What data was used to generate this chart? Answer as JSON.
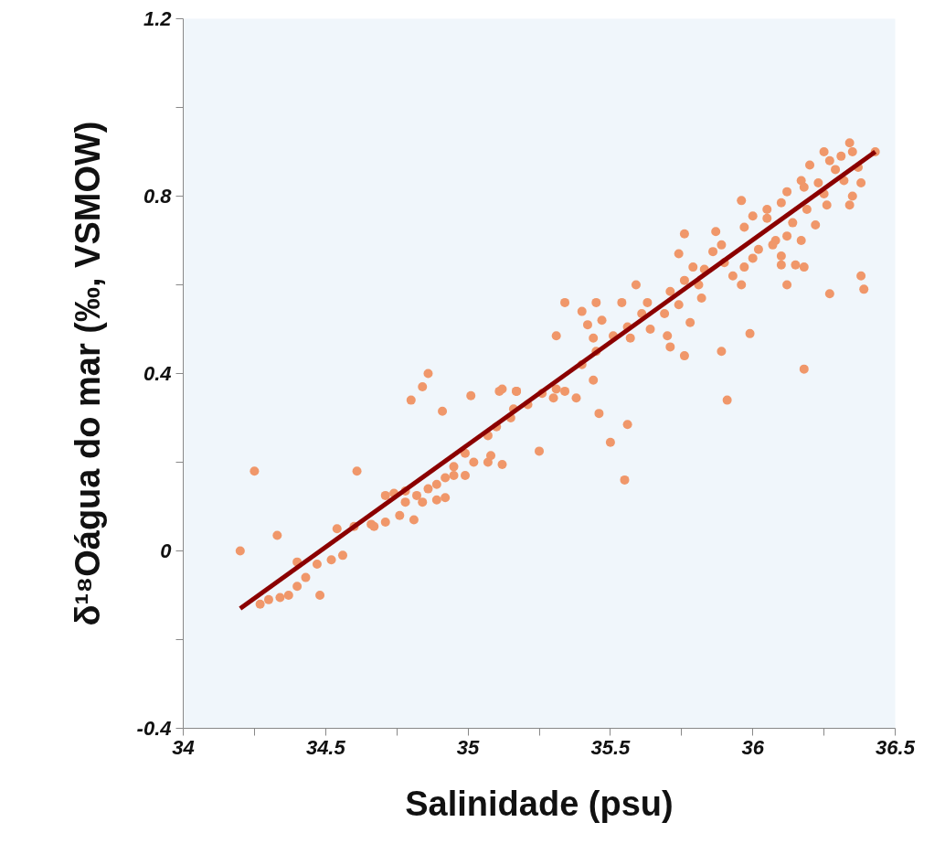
{
  "chart_data": {
    "type": "scatter",
    "xlabel": "Salinidade (psu)",
    "ylabel": "δ¹⁸Oágua do mar (‰, VSMOW)",
    "xlim": [
      34,
      36.5
    ],
    "ylim": [
      -0.4,
      1.2
    ],
    "xticks": [
      34,
      {
        "value": 34.25,
        "label": null
      },
      34.5,
      {
        "value": 34.75,
        "label": null
      },
      35,
      {
        "value": 35.25,
        "label": null
      },
      35.5,
      {
        "value": 35.75,
        "label": null
      },
      36,
      {
        "value": 36.25,
        "label": null
      },
      36.5
    ],
    "yticks": [
      -0.4,
      {
        "value": -0.2,
        "label": null
      },
      0,
      {
        "value": 0.2,
        "label": null
      },
      0.4,
      {
        "value": 0.6,
        "label": null
      },
      0.8,
      {
        "value": 1.0,
        "label": null
      },
      1.2
    ],
    "grid": false,
    "series": [
      {
        "marker": "circle",
        "color": "#f0976a",
        "x": [
          34.2,
          34.25,
          34.33,
          34.27,
          34.3,
          34.34,
          34.37,
          34.4,
          34.43,
          34.47,
          34.48,
          34.4,
          34.52,
          34.56,
          34.54,
          34.6,
          34.66,
          34.61,
          34.67,
          34.71,
          34.76,
          34.81,
          34.78,
          34.82,
          34.86,
          34.89,
          34.92,
          34.95,
          34.99,
          34.71,
          34.74,
          34.78,
          34.84,
          34.89,
          34.92,
          34.8,
          34.84,
          34.86,
          34.91,
          34.95,
          34.99,
          35.01,
          35.07,
          35.12,
          35.07,
          35.1,
          35.15,
          35.16,
          35.21,
          35.26,
          35.31,
          35.12,
          35.25,
          35.55,
          35.56,
          35.5,
          35.46,
          35.91,
          36.18,
          36.27,
          36.38,
          36.39,
          35.99,
          35.89,
          35.31,
          35.34,
          35.4,
          35.45,
          35.54,
          35.59,
          35.44,
          35.42,
          35.47,
          35.44,
          35.38,
          35.34,
          35.3,
          35.17,
          35.4,
          35.45,
          35.51,
          35.56,
          35.57,
          35.61,
          35.64,
          35.63,
          35.69,
          35.7,
          35.71,
          35.76,
          35.71,
          35.74,
          35.78,
          35.76,
          35.79,
          35.82,
          35.81,
          35.83,
          35.74,
          35.76,
          35.86,
          35.87,
          35.89,
          35.9,
          35.93,
          35.96,
          35.97,
          36.0,
          36.02,
          35.96,
          36.0,
          35.97,
          36.05,
          36.05,
          36.08,
          36.07,
          36.1,
          36.1,
          36.12,
          36.15,
          36.18,
          36.17,
          36.12,
          36.14,
          36.1,
          36.12,
          36.17,
          36.19,
          36.22,
          36.2,
          36.23,
          36.25,
          36.26,
          36.25,
          36.29,
          36.31,
          36.34,
          36.35,
          36.32,
          36.35,
          36.34,
          36.38,
          36.37,
          36.43,
          36.27,
          36.18,
          35.11,
          35.17,
          35.08,
          35.02
        ],
        "values": [
          0.0,
          0.18,
          0.035,
          -0.12,
          -0.11,
          -0.105,
          -0.1,
          -0.08,
          -0.06,
          -0.03,
          -0.1,
          -0.025,
          -0.02,
          -0.01,
          0.05,
          0.055,
          0.06,
          0.18,
          0.055,
          0.065,
          0.08,
          0.07,
          0.11,
          0.125,
          0.14,
          0.15,
          0.165,
          0.19,
          0.22,
          0.125,
          0.13,
          0.135,
          0.11,
          0.115,
          0.12,
          0.34,
          0.37,
          0.4,
          0.315,
          0.17,
          0.17,
          0.35,
          0.2,
          0.195,
          0.26,
          0.28,
          0.3,
          0.32,
          0.33,
          0.355,
          0.365,
          0.365,
          0.225,
          0.16,
          0.285,
          0.245,
          0.31,
          0.34,
          0.41,
          0.58,
          0.62,
          0.59,
          0.49,
          0.45,
          0.485,
          0.56,
          0.54,
          0.56,
          0.56,
          0.6,
          0.48,
          0.51,
          0.52,
          0.385,
          0.345,
          0.36,
          0.345,
          0.36,
          0.42,
          0.45,
          0.485,
          0.505,
          0.48,
          0.535,
          0.5,
          0.56,
          0.535,
          0.485,
          0.46,
          0.44,
          0.585,
          0.555,
          0.515,
          0.61,
          0.64,
          0.57,
          0.6,
          0.635,
          0.67,
          0.715,
          0.675,
          0.72,
          0.69,
          0.65,
          0.62,
          0.6,
          0.64,
          0.66,
          0.68,
          0.79,
          0.755,
          0.73,
          0.77,
          0.75,
          0.7,
          0.69,
          0.665,
          0.645,
          0.6,
          0.645,
          0.64,
          0.7,
          0.71,
          0.74,
          0.785,
          0.81,
          0.835,
          0.77,
          0.735,
          0.87,
          0.83,
          0.805,
          0.78,
          0.9,
          0.86,
          0.89,
          0.92,
          0.9,
          0.835,
          0.8,
          0.78,
          0.83,
          0.865,
          0.9,
          0.88,
          0.82,
          0.36,
          0.36,
          0.215,
          0.2
        ]
      },
      {
        "type": "line",
        "marker": "none",
        "color": "#8b0000",
        "x": [
          34.2,
          36.43
        ],
        "values": [
          -0.13,
          0.9
        ]
      }
    ]
  }
}
